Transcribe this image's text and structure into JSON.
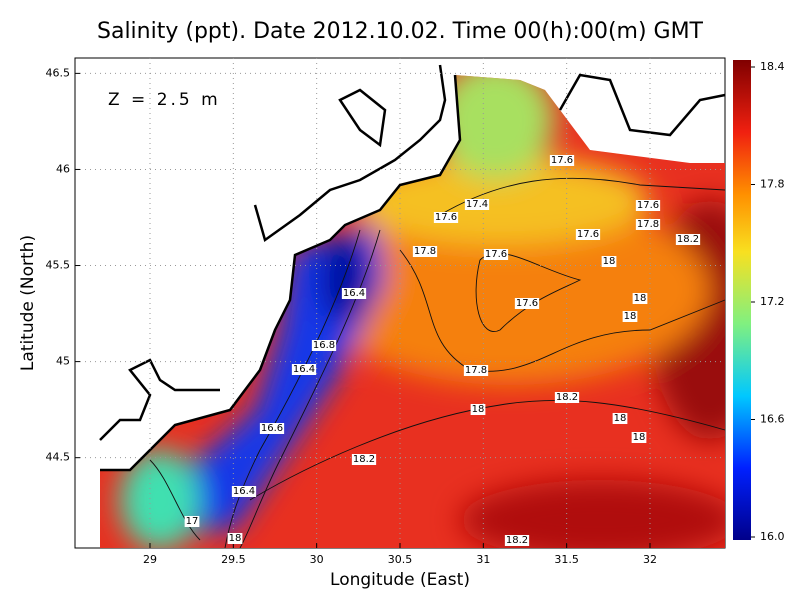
{
  "chart_data": {
    "type": "contour_map",
    "title": "Salinity (ppt). Date 2012.10.02. Time 00(h):00(m) GMT",
    "annotation": "Z = 2.5 m",
    "x_label": "Longitude (East)",
    "y_label": "Latitude (North)",
    "xlim": [
      28.55,
      32.45
    ],
    "ylim": [
      44.03,
      46.58
    ],
    "xticks": [
      29,
      29.5,
      30,
      30.5,
      31,
      31.5,
      32
    ],
    "yticks": [
      44.5,
      45,
      45.5,
      46,
      46.5
    ],
    "grid": true,
    "colorbar_lim": [
      16,
      18.4
    ],
    "colorbar_ticks": [
      {
        "value": 16,
        "label": "16.0"
      },
      16.6,
      17.2,
      17.8,
      18.4
    ],
    "contour_labels": [
      17.6,
      17.4,
      17.6,
      17.6,
      17.6,
      17.8,
      18.2,
      17.8,
      17.6,
      18,
      16.4,
      17.6,
      18,
      18,
      16.8,
      16.4,
      17.8,
      18.2,
      18,
      18,
      16.6,
      18,
      18.2,
      16.4,
      17,
      18,
      18.2
    ]
  }
}
